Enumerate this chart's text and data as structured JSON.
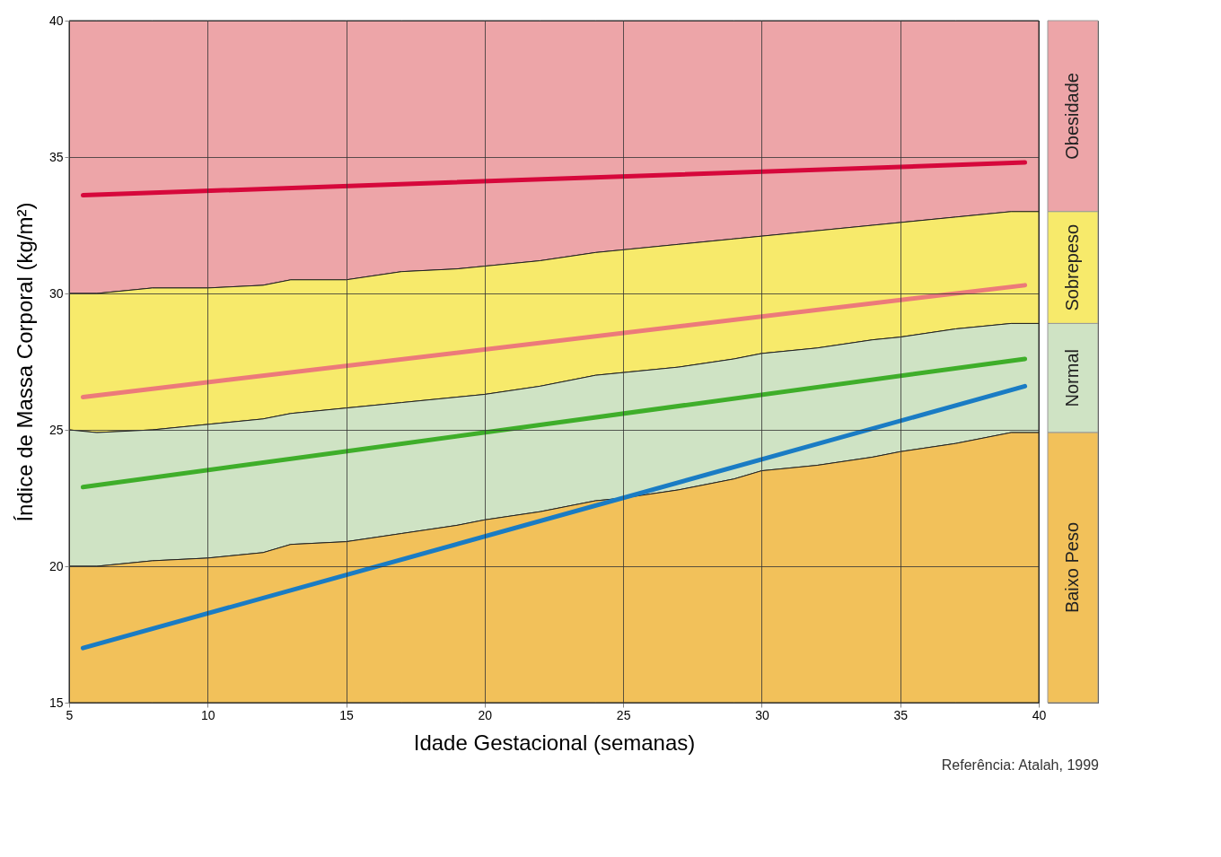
{
  "chart_data": {
    "type": "line",
    "xlabel": "Idade Gestacional (semanas)",
    "ylabel": "Índice de Massa Corporal (kg/m²)",
    "annotations": [
      "Referência: Atalah, 1999"
    ],
    "xlim": [
      5,
      40
    ],
    "ylim": [
      15,
      40
    ],
    "xticks": [
      5,
      10,
      15,
      20,
      25,
      30,
      35,
      40
    ],
    "yticks": [
      15,
      20,
      25,
      30,
      35,
      40
    ],
    "grid": true,
    "legend": "right",
    "series": [
      {
        "type": "area",
        "name": "Obesidade",
        "color": "#eda5a8",
        "x": [
          5,
          6,
          8,
          10,
          12,
          13,
          15,
          17,
          19,
          20,
          22,
          24,
          25,
          27,
          29,
          30,
          32,
          34,
          35,
          37,
          39,
          40
        ],
        "values": [
          40,
          40,
          40,
          40,
          40,
          40,
          40,
          40,
          40,
          40,
          40,
          40,
          40,
          40,
          40,
          40,
          40,
          40,
          40,
          40,
          40,
          40
        ]
      },
      {
        "type": "area",
        "name": "Sobrepeso",
        "color": "#f7ea6b",
        "x": [
          5,
          6,
          8,
          10,
          12,
          13,
          15,
          17,
          19,
          20,
          22,
          24,
          25,
          27,
          29,
          30,
          32,
          34,
          35,
          37,
          39,
          40
        ],
        "values": [
          30,
          30,
          30.2,
          30.2,
          30.3,
          30.5,
          30.5,
          30.8,
          30.9,
          31,
          31.2,
          31.5,
          31.6,
          31.8,
          32,
          32.1,
          32.3,
          32.5,
          32.6,
          32.8,
          33,
          33
        ]
      },
      {
        "type": "area",
        "name": "Normal",
        "color": "#cfe3c4",
        "x": [
          5,
          6,
          8,
          10,
          12,
          13,
          15,
          17,
          19,
          20,
          22,
          24,
          25,
          27,
          29,
          30,
          32,
          34,
          35,
          37,
          39,
          40
        ],
        "values": [
          25,
          24.9,
          25,
          25.2,
          25.4,
          25.6,
          25.8,
          26,
          26.2,
          26.3,
          26.6,
          27,
          27.1,
          27.3,
          27.6,
          27.8,
          28,
          28.3,
          28.4,
          28.7,
          28.9,
          28.9
        ]
      },
      {
        "type": "area",
        "name": "Baixo Peso",
        "color": "#f2c15a",
        "x": [
          5,
          6,
          8,
          10,
          12,
          13,
          15,
          17,
          19,
          20,
          22,
          24,
          25,
          27,
          29,
          30,
          32,
          34,
          35,
          37,
          39,
          40
        ],
        "values": [
          20,
          20,
          20.2,
          20.3,
          20.5,
          20.8,
          20.9,
          21.2,
          21.5,
          21.7,
          22,
          22.4,
          22.5,
          22.8,
          23.2,
          23.5,
          23.7,
          24,
          24.2,
          24.5,
          24.9,
          24.9
        ]
      },
      {
        "type": "line",
        "color": "#d6083b",
        "x": [
          5.5,
          39.5
        ],
        "values": [
          33.6,
          34.8
        ]
      },
      {
        "type": "line",
        "color": "#ec7a7a",
        "x": [
          5.5,
          39.5
        ],
        "values": [
          26.2,
          30.3
        ]
      },
      {
        "type": "line",
        "color": "#3fae2a",
        "x": [
          5.5,
          39.5
        ],
        "values": [
          22.9,
          27.6
        ]
      },
      {
        "type": "line",
        "color": "#1a7cc4",
        "x": [
          5.5,
          39.5
        ],
        "values": [
          17,
          26.6
        ]
      }
    ]
  }
}
